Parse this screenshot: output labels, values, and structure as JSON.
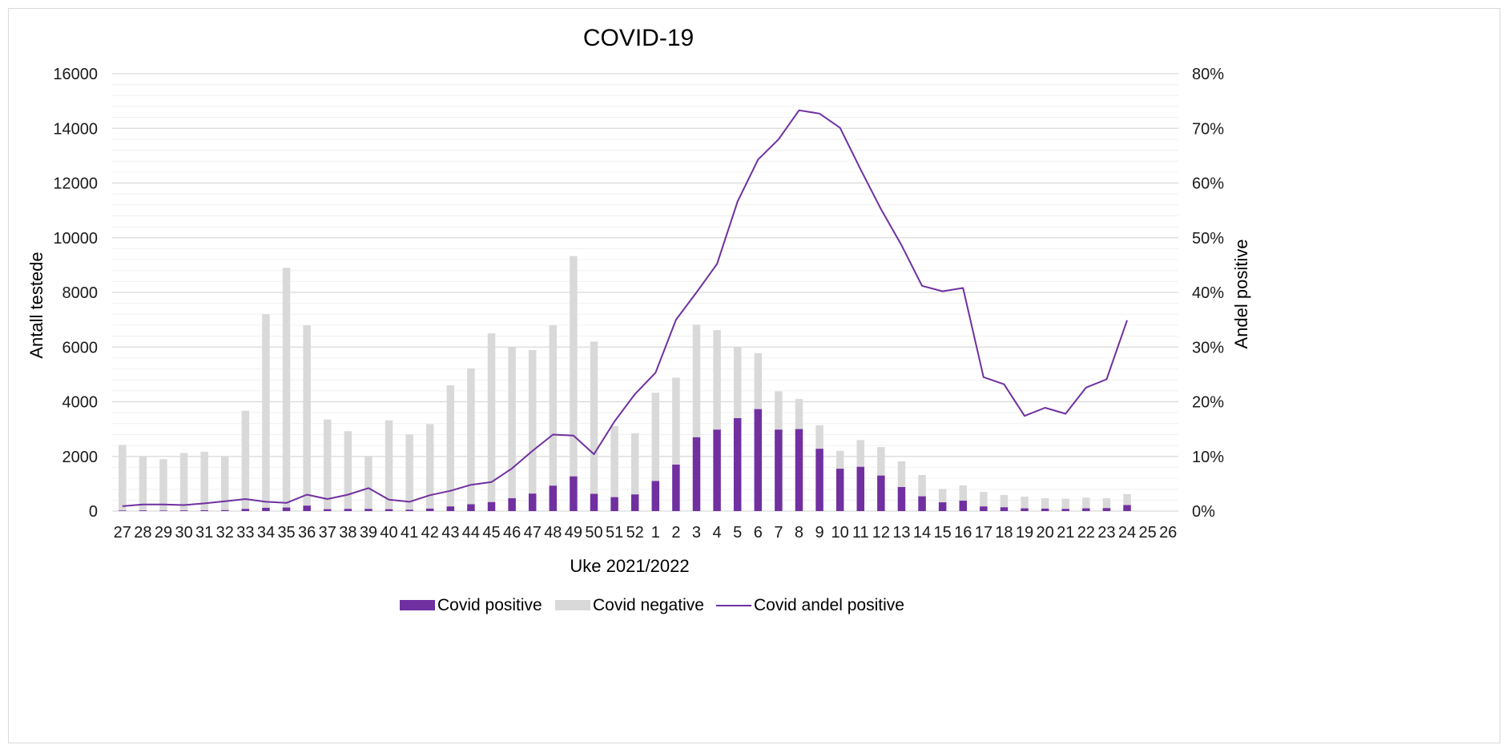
{
  "chart_data": {
    "type": "bar",
    "title": "COVID-19",
    "xlabel": "Uke 2021/2022",
    "ylabel": "Antall testede",
    "y2label": "Andel positive",
    "ylim": [
      0,
      16000
    ],
    "y2lim": [
      0,
      0.8
    ],
    "yticks": [
      "0",
      "2000",
      "4000",
      "6000",
      "8000",
      "10000",
      "12000",
      "14000",
      "16000"
    ],
    "y2ticks": [
      "0%",
      "10%",
      "20%",
      "30%",
      "40%",
      "50%",
      "60%",
      "70%",
      "80%"
    ],
    "grid": true,
    "legend": "bottom",
    "stacked": true,
    "categories": [
      "27",
      "28",
      "29",
      "30",
      "31",
      "32",
      "33",
      "34",
      "35",
      "36",
      "37",
      "38",
      "39",
      "40",
      "41",
      "42",
      "43",
      "44",
      "45",
      "46",
      "47",
      "48",
      "49",
      "50",
      "51",
      "52",
      "1",
      "2",
      "3",
      "4",
      "5",
      "6",
      "7",
      "8",
      "9",
      "10",
      "11",
      "12",
      "13",
      "14",
      "15",
      "16",
      "17",
      "18",
      "19",
      "20",
      "21",
      "22",
      "23",
      "24",
      "25",
      "26"
    ],
    "series": [
      {
        "name": "Covid positive",
        "kind": "bar",
        "color": "#7030a0",
        "values": [
          20,
          25,
          20,
          25,
          30,
          35,
          80,
          120,
          130,
          200,
          70,
          80,
          80,
          70,
          50,
          90,
          170,
          250,
          330,
          470,
          640,
          930,
          1270,
          630,
          510,
          610,
          1100,
          1700,
          2700,
          2980,
          3400,
          3730,
          2980,
          3000,
          2280,
          1550,
          1620,
          1300,
          880,
          540,
          320,
          380,
          170,
          140,
          100,
          90,
          80,
          100,
          110,
          220,
          null,
          null
        ]
      },
      {
        "name": "Covid negative",
        "kind": "bar",
        "color": "#d9d9d9",
        "values": [
          2400,
          1980,
          1880,
          2100,
          2140,
          1970,
          3590,
          7080,
          8770,
          6600,
          3280,
          2840,
          1920,
          3250,
          2750,
          3090,
          4430,
          4970,
          6170,
          5530,
          5250,
          5870,
          8060,
          5570,
          2600,
          2240,
          3230,
          3180,
          4120,
          3640,
          2600,
          2050,
          1400,
          1100,
          860,
          650,
          980,
          1040,
          940,
          780,
          490,
          560,
          530,
          450,
          430,
          380,
          370,
          390,
          360,
          400,
          null,
          null
        ]
      },
      {
        "name": "Covid andel positive",
        "kind": "line",
        "axis": "right",
        "color": "#7030a0",
        "values": [
          0.009,
          0.012,
          0.012,
          0.011,
          0.014,
          0.018,
          0.022,
          0.017,
          0.015,
          0.03,
          0.022,
          0.03,
          0.042,
          0.021,
          0.017,
          0.029,
          0.037,
          0.048,
          0.053,
          0.078,
          0.11,
          0.14,
          0.138,
          0.104,
          0.164,
          0.214,
          0.253,
          0.35,
          0.4,
          0.452,
          0.566,
          0.643,
          0.68,
          0.733,
          0.727,
          0.701,
          0.625,
          0.552,
          0.486,
          0.412,
          0.402,
          0.408,
          0.245,
          0.232,
          0.174,
          0.189,
          0.178,
          0.226,
          0.241,
          0.349,
          null,
          null
        ]
      }
    ]
  }
}
